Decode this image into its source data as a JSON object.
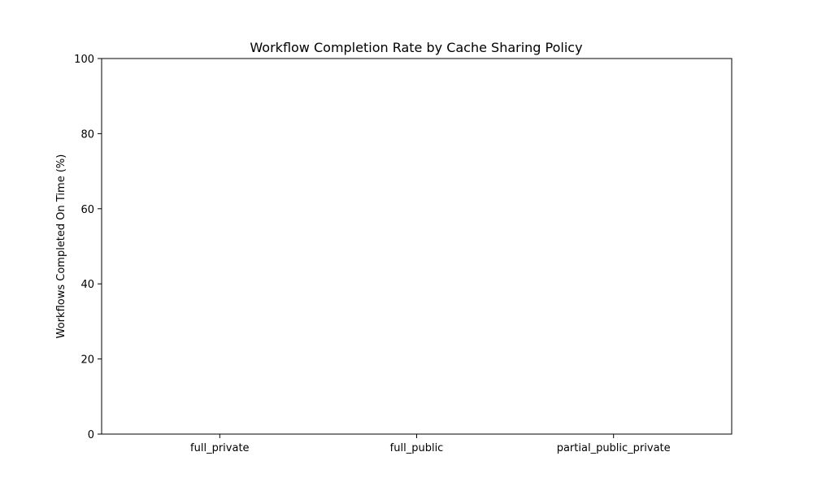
{
  "chart_data": {
    "type": "bar",
    "title": "Workflow Completion Rate by Cache Sharing Policy",
    "xlabel": "",
    "ylabel": "Workflows Completed On Time (%)",
    "categories": [
      "full_private",
      "full_public",
      "partial_public_private"
    ],
    "values": [
      0,
      0,
      0
    ],
    "ylim": [
      0,
      100
    ],
    "yticks": [
      "0",
      "20",
      "40",
      "60",
      "80",
      "100"
    ],
    "grid": false,
    "colors": {
      "bar": "#1f77b4",
      "axis": "#000000",
      "background": "#ffffff"
    }
  }
}
